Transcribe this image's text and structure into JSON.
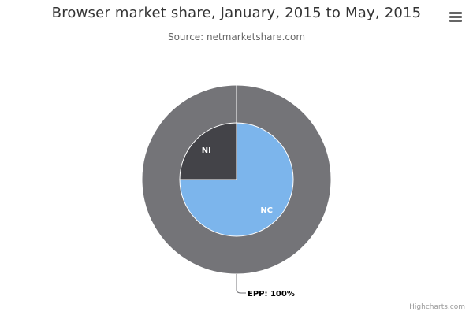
{
  "title": "Browser market share, January, 2015 to May, 2015",
  "subtitle": "Source: netmarketshare.com",
  "menu": {
    "icon": "hamburger-menu-icon"
  },
  "credits": "Highcharts.com",
  "chart_data": {
    "type": "pie",
    "title": "Browser market share, January, 2015 to May, 2015",
    "subtitle": "Source: netmarketshare.com",
    "series": [
      {
        "kind": "inner-pie",
        "slices": [
          {
            "name": "NC",
            "value": 75,
            "color": "#7cb5ec"
          },
          {
            "name": "NI",
            "value": 25,
            "color": "#434348"
          }
        ]
      },
      {
        "kind": "outer-ring",
        "slices": [
          {
            "name": "EPP",
            "value": 100,
            "color": "#747478",
            "label": "EPP: 100%"
          }
        ]
      }
    ]
  }
}
